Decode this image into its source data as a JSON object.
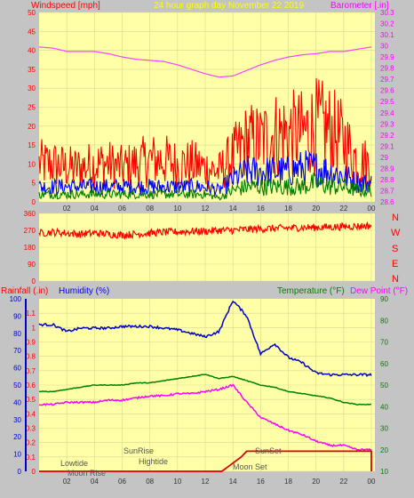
{
  "header": {
    "wind_label": "Windspeed [mph]",
    "title": "24 hour graph day   November 22 2019",
    "baro_label": "Barometer [.in]"
  },
  "bottom_header": {
    "rain_label": "Rainfall (.in)",
    "hum_label": "Humidity (%)",
    "temp_label": "Temperature (°F)",
    "dew_label": "Dew Point (°F)"
  },
  "compass": [
    "N",
    "W",
    "S",
    "E",
    "N"
  ],
  "events": {
    "lowtide": "Lowtide",
    "moonrise": "Moon Rise",
    "sunrise": "SunRise",
    "hightide": "Hightide",
    "sunset": "SunSet",
    "moonset": "Moon Set"
  },
  "colors": {
    "plot_bg": "#ffffa8",
    "frame_bg": "#c4c4c4",
    "wind_gust": "#ff0000",
    "wind_avg": "#0000ff",
    "wind_low": "#008000",
    "barometer": "#ff40ff",
    "direction": "#ff0000",
    "humidity": "#0000cc",
    "temperature": "#008000",
    "dewpoint": "#ff00ff",
    "rainfall": "#dd0000",
    "title_text": "#ffff00",
    "label_red": "#ff0000",
    "label_magenta": "#ff00ff"
  },
  "chart_data": [
    {
      "type": "line",
      "name": "wind-barometer",
      "xticks": [
        "02",
        "04",
        "06",
        "08",
        "10",
        "12",
        "14",
        "16",
        "18",
        "20",
        "22",
        "00"
      ],
      "x_hours": [
        0,
        1,
        2,
        3,
        4,
        5,
        6,
        7,
        8,
        9,
        10,
        11,
        12,
        13,
        14,
        15,
        16,
        17,
        18,
        19,
        20,
        21,
        22,
        23,
        24
      ],
      "ylim_left": [
        0,
        50
      ],
      "yticks_left": [
        0,
        5,
        10,
        15,
        20,
        25,
        30,
        35,
        40,
        45,
        50
      ],
      "ylim_right": [
        28.6,
        30.3
      ],
      "yticks_right": [
        "28.6",
        "28.7",
        "28.8",
        "28.9",
        "29",
        "29.1",
        "29.2",
        "29.3",
        "29.4",
        "29.5",
        "29.6",
        "29.7",
        "29.8",
        "29.9",
        "30",
        "30.1",
        "30.2",
        "30.3"
      ],
      "series": [
        {
          "key": "gust",
          "values": [
            10,
            10,
            9,
            9,
            10,
            10,
            9,
            10,
            11,
            11,
            10,
            10,
            9,
            8,
            12,
            16,
            16,
            18,
            18,
            18,
            20,
            19,
            16,
            11,
            10
          ]
        },
        {
          "key": "avg",
          "values": [
            4,
            4,
            4,
            4,
            4,
            4,
            4,
            4,
            4,
            4,
            4,
            4,
            4,
            3,
            6,
            8,
            8,
            8,
            8,
            9,
            9,
            8,
            7,
            5,
            5
          ]
        },
        {
          "key": "low",
          "values": [
            2,
            2,
            2,
            2,
            2,
            2,
            2,
            2,
            2,
            2,
            2,
            2,
            2,
            1,
            3,
            4,
            4,
            4,
            4,
            4,
            5,
            4,
            4,
            3,
            3
          ]
        },
        {
          "key": "barometer",
          "values": [
            29.99,
            29.98,
            29.95,
            29.95,
            29.95,
            29.93,
            29.9,
            29.88,
            29.87,
            29.86,
            29.83,
            29.79,
            29.75,
            29.72,
            29.73,
            29.78,
            29.83,
            29.87,
            29.9,
            29.92,
            29.93,
            29.95,
            29.95,
            29.97,
            29.99
          ]
        }
      ]
    },
    {
      "type": "line",
      "name": "wind-direction",
      "ylim": [
        0,
        360
      ],
      "yticks": [
        0,
        90,
        180,
        270,
        360
      ],
      "series": [
        {
          "key": "direction",
          "values": [
            255,
            260,
            255,
            250,
            255,
            250,
            245,
            250,
            255,
            260,
            262,
            265,
            265,
            270,
            270,
            275,
            278,
            280,
            282,
            285,
            285,
            288,
            290,
            292,
            295
          ]
        }
      ]
    },
    {
      "type": "line",
      "name": "rain-humidity-temperature",
      "ylim_left_rain": [
        0,
        1.2
      ],
      "yticks_left_rain": [
        "0",
        "0.1",
        "0.2",
        "0.3",
        "0.4",
        "0.5",
        "0.6",
        "0.7",
        "0.8",
        "0.9",
        "1",
        "1.1"
      ],
      "ylim_left_hum": [
        0,
        100
      ],
      "yticks_left_hum": [
        0,
        10,
        20,
        30,
        40,
        50,
        60,
        70,
        80,
        90,
        100
      ],
      "ylim_right": [
        10,
        90
      ],
      "yticks_right": [
        10,
        20,
        30,
        40,
        50,
        60,
        70,
        80,
        90
      ],
      "series": [
        {
          "key": "humidity",
          "values": [
            85,
            85,
            81,
            83,
            83,
            83,
            84,
            84,
            84,
            83,
            82,
            80,
            78,
            81,
            99,
            90,
            68,
            74,
            66,
            63,
            57,
            56,
            56,
            56,
            56
          ]
        },
        {
          "key": "temperature",
          "values": [
            47,
            47,
            48,
            49,
            50,
            50,
            50,
            51,
            51,
            52,
            53,
            54,
            55,
            53,
            54,
            52,
            50,
            49,
            47,
            46,
            45,
            44,
            42,
            41,
            41
          ]
        },
        {
          "key": "dewpoint",
          "values": [
            41,
            41,
            42,
            42,
            42,
            43,
            43,
            44,
            45,
            45,
            46,
            46,
            47,
            48,
            50,
            42,
            35,
            32,
            29,
            27,
            24,
            22,
            22,
            20,
            20
          ]
        },
        {
          "key": "rainfall",
          "values": [
            0,
            0,
            0,
            0,
            0,
            0,
            0,
            0,
            0,
            0,
            0,
            0,
            0,
            0,
            0.1,
            0.14,
            0.14,
            0.14,
            0.14,
            0.14,
            0.14,
            0.14,
            0.14,
            0.14,
            0.14
          ]
        }
      ]
    }
  ]
}
